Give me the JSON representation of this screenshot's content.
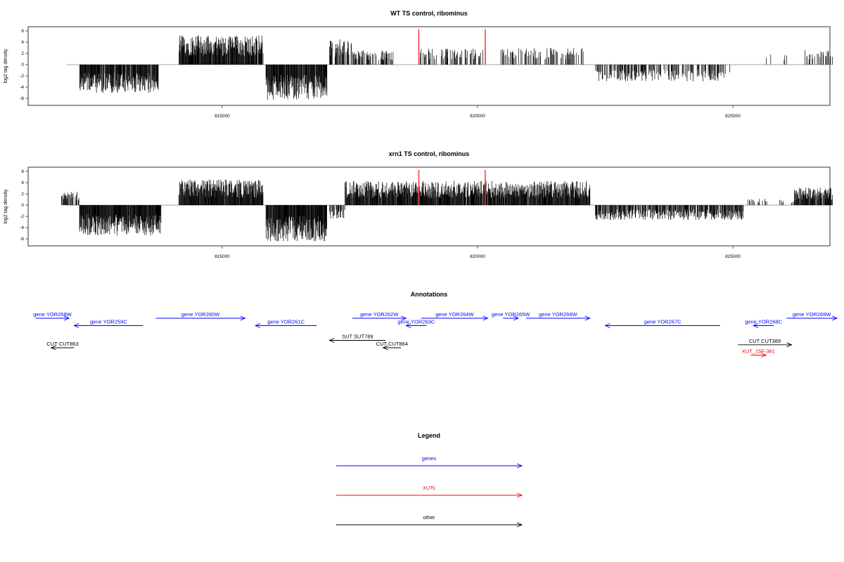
{
  "chart_data": [
    {
      "type": "bar",
      "title": "WT TS control, ribominus",
      "xlabel": "",
      "ylabel": "log2 tag density",
      "xlim": [
        811200,
        826900
      ],
      "ylim": [
        -6,
        6
      ],
      "x_ticks": [
        815000,
        820000,
        825000
      ],
      "x_tick_labels": [
        "815000",
        "820000",
        "825000"
      ],
      "y_ticks": [
        -6,
        -4,
        -2,
        0,
        2,
        4,
        6
      ],
      "y_tick_labels": [
        "-6",
        "-4",
        "-2",
        "0",
        "2",
        "4",
        "6"
      ],
      "highlight_positions": [
        818850,
        820150
      ],
      "highlight_color": "#ff3333",
      "segments": [
        {
          "start": 811950,
          "end": 812200,
          "value": 2.2,
          "dense": 0.08
        },
        {
          "start": 812200,
          "end": 813750,
          "value": -4.2,
          "dense": 0.9
        },
        {
          "start": 814150,
          "end": 815800,
          "value": 4.4,
          "dense": 0.95
        },
        {
          "start": 815850,
          "end": 817050,
          "value": -5.2,
          "dense": 0.95
        },
        {
          "start": 817100,
          "end": 817550,
          "value": 3.8,
          "dense": 0.5
        },
        {
          "start": 817550,
          "end": 818350,
          "value": 2.2,
          "dense": 0.5
        },
        {
          "start": 818850,
          "end": 820200,
          "value": 2.4,
          "dense": 0.35
        },
        {
          "start": 820450,
          "end": 822100,
          "value": 2.5,
          "dense": 0.35
        },
        {
          "start": 822300,
          "end": 824950,
          "value": -2.5,
          "dense": 0.45
        },
        {
          "start": 825650,
          "end": 826100,
          "value": 2.0,
          "dense": 0.05
        },
        {
          "start": 826400,
          "end": 826950,
          "value": 2.2,
          "dense": 0.25
        }
      ]
    },
    {
      "type": "bar",
      "title": "xrn1 TS control, ribominus",
      "xlabel": "",
      "ylabel": "log2 tag density",
      "xlim": [
        811200,
        826900
      ],
      "ylim": [
        -6,
        6
      ],
      "x_ticks": [
        815000,
        820000,
        825000
      ],
      "x_tick_labels": [
        "815000",
        "820000",
        "825000"
      ],
      "y_ticks": [
        -6,
        -4,
        -2,
        0,
        2,
        4,
        6
      ],
      "y_tick_labels": [
        "-6",
        "-4",
        "-2",
        "0",
        "2",
        "4",
        "6"
      ],
      "highlight_positions": [
        818850,
        820150
      ],
      "highlight_color": "#ff3333",
      "segments": [
        {
          "start": 811850,
          "end": 812200,
          "value": 2.0,
          "dense": 0.6
        },
        {
          "start": 812200,
          "end": 813800,
          "value": -4.5,
          "dense": 1.0
        },
        {
          "start": 814150,
          "end": 815800,
          "value": 3.8,
          "dense": 1.0
        },
        {
          "start": 815850,
          "end": 817050,
          "value": -5.5,
          "dense": 1.0
        },
        {
          "start": 817100,
          "end": 817400,
          "value": -2.0,
          "dense": 0.5
        },
        {
          "start": 817400,
          "end": 822200,
          "value": 3.6,
          "dense": 0.95
        },
        {
          "start": 822300,
          "end": 825200,
          "value": -2.2,
          "dense": 0.7
        },
        {
          "start": 825200,
          "end": 826200,
          "value": 1.0,
          "dense": 0.12
        },
        {
          "start": 826200,
          "end": 826950,
          "value": 2.6,
          "dense": 0.9
        }
      ]
    }
  ],
  "annotations": {
    "title": "Annotations",
    "items": [
      {
        "label": "gene YOR258W",
        "start": 811350,
        "end": 812000,
        "dir": "right",
        "row": 0,
        "color": "#0000ff"
      },
      {
        "label": "gene YOR259C",
        "start": 812100,
        "end": 813450,
        "dir": "left",
        "row": 1,
        "color": "#0000ff"
      },
      {
        "label": "gene YOR260W",
        "start": 813700,
        "end": 815450,
        "dir": "right",
        "row": 0,
        "color": "#0000ff"
      },
      {
        "label": "gene YOR261C",
        "start": 815650,
        "end": 816850,
        "dir": "left",
        "row": 1,
        "color": "#0000ff"
      },
      {
        "label": "gene YOR262W",
        "start": 817550,
        "end": 818600,
        "dir": "right",
        "row": 0,
        "color": "#0000ff"
      },
      {
        "label": "gene YOR263C",
        "start": 818600,
        "end": 819000,
        "dir": "left",
        "row": 1,
        "color": "#0000ff"
      },
      {
        "label": "gene YOR264W",
        "start": 818900,
        "end": 820200,
        "dir": "right",
        "row": 0,
        "color": "#0000ff"
      },
      {
        "label": "gene YOR265W",
        "start": 820500,
        "end": 820800,
        "dir": "right",
        "row": 0,
        "color": "#0000ff"
      },
      {
        "label": "gene YOR266W",
        "start": 820950,
        "end": 822200,
        "dir": "right",
        "row": 0,
        "color": "#0000ff"
      },
      {
        "label": "gene YOR267C",
        "start": 822500,
        "end": 824750,
        "dir": "left",
        "row": 1,
        "color": "#0000ff"
      },
      {
        "label": "gene YOR268C",
        "start": 825400,
        "end": 825800,
        "dir": "left",
        "row": 1,
        "color": "#0000ff"
      },
      {
        "label": "gene YOR269W",
        "start": 826050,
        "end": 827200,
        "dir": "right",
        "row": 0,
        "color": "#0000ff"
      },
      {
        "label": "SUT SUT789",
        "start": 817100,
        "end": 818200,
        "dir": "left",
        "row": 3,
        "color": "#000000"
      },
      {
        "label": "CUT CUT863",
        "start": 811650,
        "end": 812100,
        "dir": "left",
        "row": 4,
        "color": "#000000"
      },
      {
        "label": "CUT CUT864",
        "start": 818150,
        "end": 818500,
        "dir": "left",
        "row": 4,
        "color": "#000000"
      },
      {
        "label": "CUT CUT389",
        "start": 825100,
        "end": 826150,
        "dir": "right",
        "row": 3.6,
        "color": "#000000"
      },
      {
        "label": "XUT_15F-381",
        "start": 825350,
        "end": 825650,
        "dir": "right",
        "row": 5,
        "color": "#ff0000"
      }
    ]
  },
  "legend": {
    "title": "Legend",
    "items": [
      {
        "label": "genes",
        "color": "#0000ff"
      },
      {
        "label": "XUTs",
        "color": "#ff0000"
      },
      {
        "label": "other",
        "color": "#000000"
      }
    ]
  }
}
